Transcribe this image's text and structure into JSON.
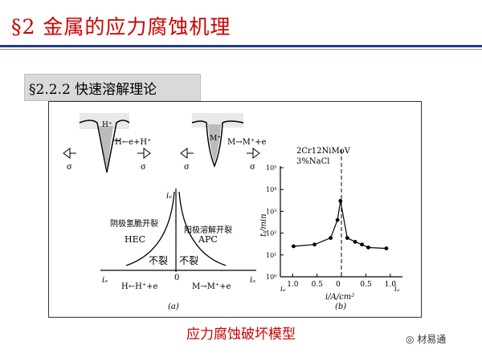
{
  "slide": {
    "title": "§2 金属的应力腐蚀机理",
    "subtitle": "§2.2.2 快速溶解理论",
    "caption": "应力腐蚀破坏模型",
    "watermark": "材易通"
  },
  "figure_a": {
    "crack1_ion": "H⁺",
    "crack1_reaction": "H←e+H⁺",
    "crack2_ion": "M⁺",
    "crack2_reaction": "M→M⁺+e",
    "sigma": "σ",
    "y_axis": "iₑ",
    "hec_desc": "阴极氢脆开裂",
    "hec": "HEC",
    "apc_desc": "阳极溶解开裂",
    "apc": "APC",
    "no_crack": "不裂",
    "origin": "0",
    "x_left": "iₑ",
    "x_right": "iₐ",
    "bottom_left": "H←H⁺+e",
    "bottom_right": "M→M⁺+e",
    "label": "(a)"
  },
  "chart_data": {
    "type": "scatter",
    "title": "2Cr12NiMoV",
    "subtitle": "3%NaCl",
    "xlabel": "i/A/cm²",
    "ylabel": "tᵢ/min",
    "x_ticks": [
      "1.0",
      "0.5",
      "0",
      "0.5",
      "1.0"
    ],
    "x_end_left": "iₑ",
    "x_end_right": "iₐ",
    "y_ticks": [
      "10⁰",
      "10¹",
      "10²",
      "10³",
      "10⁴",
      "10⁵"
    ],
    "yscale": "log",
    "xlim": [
      -1.25,
      1.25
    ],
    "ylim": [
      1,
      100000
    ],
    "points": [
      {
        "x": -0.98,
        "y": 25
      },
      {
        "x": -0.55,
        "y": 30
      },
      {
        "x": -0.22,
        "y": 60
      },
      {
        "x": -0.08,
        "y": 400
      },
      {
        "x": -0.02,
        "y": 3000
      },
      {
        "x": 0.12,
        "y": 60
      },
      {
        "x": 0.28,
        "y": 40
      },
      {
        "x": 0.42,
        "y": 30
      },
      {
        "x": 0.55,
        "y": 22
      },
      {
        "x": 0.92,
        "y": 20
      }
    ],
    "label": "(b)"
  }
}
